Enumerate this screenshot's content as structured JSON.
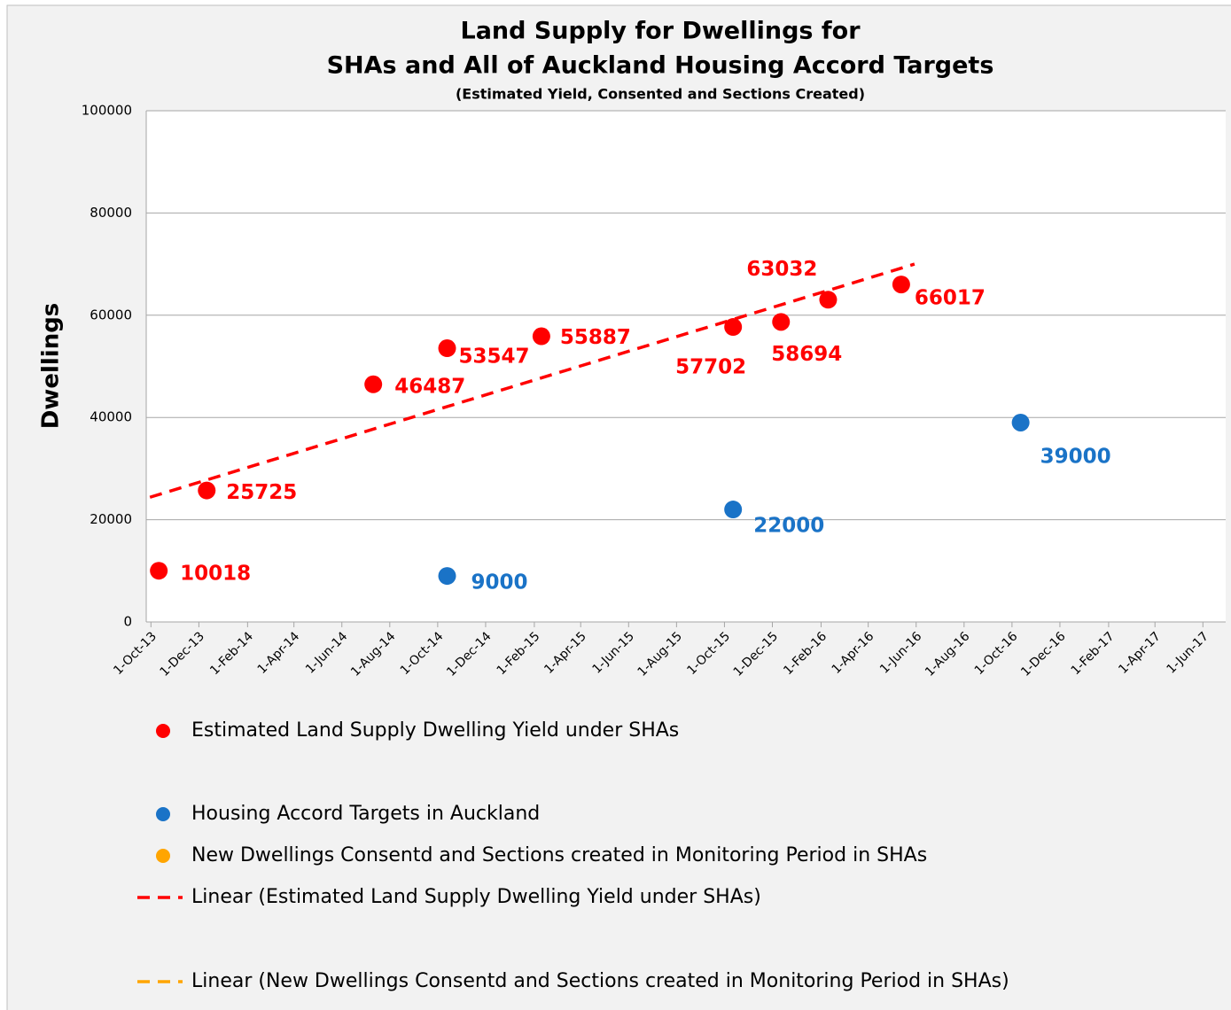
{
  "chart_data": {
    "type": "scatter",
    "title": "Land Supply for Dwellings for",
    "title_line2": "SHAs and All of Auckland Housing Accord Targets",
    "subtitle": "(Estimated Yield, Consented and Sections Created)",
    "y_label": "Dwellings",
    "xlim": [
      "2013-09-25",
      "2017-06-30"
    ],
    "xticks": [
      {
        "value": "2013-10-01",
        "label": "1-Oct-13"
      },
      {
        "value": "2013-12-01",
        "label": "1-Dec-13"
      },
      {
        "value": "2014-02-01",
        "label": "1-Feb-14"
      },
      {
        "value": "2014-04-01",
        "label": "1-Apr-14"
      },
      {
        "value": "2014-06-01",
        "label": "1-Jun-14"
      },
      {
        "value": "2014-08-01",
        "label": "1-Aug-14"
      },
      {
        "value": "2014-10-01",
        "label": "1-Oct-14"
      },
      {
        "value": "2014-12-01",
        "label": "1-Dec-14"
      },
      {
        "value": "2015-02-01",
        "label": "1-Feb-15"
      },
      {
        "value": "2015-04-01",
        "label": "1-Apr-15"
      },
      {
        "value": "2015-06-01",
        "label": "1-Jun-15"
      },
      {
        "value": "2015-08-01",
        "label": "1-Aug-15"
      },
      {
        "value": "2015-10-01",
        "label": "1-Oct-15"
      },
      {
        "value": "2015-12-01",
        "label": "1-Dec-15"
      },
      {
        "value": "2016-02-01",
        "label": "1-Feb-16"
      },
      {
        "value": "2016-04-01",
        "label": "1-Apr-16"
      },
      {
        "value": "2016-06-01",
        "label": "1-Jun-16"
      },
      {
        "value": "2016-08-01",
        "label": "1-Aug-16"
      },
      {
        "value": "2016-10-01",
        "label": "1-Oct-16"
      },
      {
        "value": "2016-12-01",
        "label": "1-Dec-16"
      },
      {
        "value": "2017-02-01",
        "label": "1-Feb-17"
      },
      {
        "value": "2017-04-01",
        "label": "1-Apr-17"
      },
      {
        "value": "2017-06-01",
        "label": "1-Jun-17"
      }
    ],
    "ylim": [
      0,
      100000
    ],
    "yticks": [
      0,
      20000,
      40000,
      60000,
      80000,
      100000
    ],
    "grid": true,
    "series": [
      {
        "name": "Estimated Land Supply Dwelling Yield under SHAs",
        "color": "#ff0000",
        "x": [
          "2013-10-11",
          "2013-12-11",
          "2014-07-11",
          "2014-10-13",
          "2015-02-10",
          "2015-10-12",
          "2015-12-12",
          "2016-02-10",
          "2016-05-13"
        ],
        "values": [
          10018,
          25725,
          46487,
          53547,
          55887,
          57702,
          58694,
          63032,
          66017
        ],
        "trendline": {
          "name": "Linear (Estimated Land Supply Dwelling Yield under SHAs)"
        }
      },
      {
        "name": "Housing Accord Targets in Auckland",
        "color": "#1a73c7",
        "x": [
          "2014-10-13",
          "2015-10-12",
          "2016-10-12"
        ],
        "values": [
          9000,
          22000,
          39000
        ]
      },
      {
        "name": "New Dwellings Consentd and Sections created in Monitoring Period in SHAs",
        "color": "#ffa500",
        "x": [],
        "values": [],
        "trendline": {
          "name": "Linear (New Dwellings Consentd and Sections created in Monitoring Period in SHAs)"
        }
      }
    ]
  }
}
